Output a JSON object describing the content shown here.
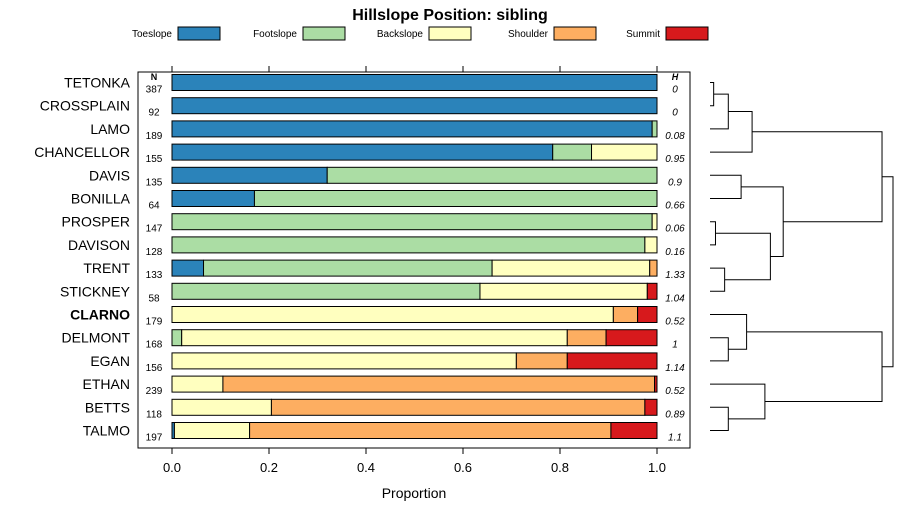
{
  "chart_data": {
    "type": "bar",
    "orientation": "horizontal",
    "stacked": true,
    "title": "Hillslope Position: sibling",
    "xlabel": "Proportion",
    "ylabel": "",
    "xlim": [
      0,
      1
    ],
    "xticks": [
      "0.0",
      "0.2",
      "0.4",
      "0.6",
      "0.8",
      "1.0"
    ],
    "n_header": "N",
    "h_header": "H",
    "highlight": "CLARNO",
    "legend": [
      {
        "name": "Toeslope",
        "color": "#2b83ba"
      },
      {
        "name": "Footslope",
        "color": "#abdda4"
      },
      {
        "name": "Backslope",
        "color": "#ffffbf"
      },
      {
        "name": "Shoulder",
        "color": "#fdae61"
      },
      {
        "name": "Summit",
        "color": "#d7191c"
      }
    ],
    "categories": [
      "TETONKA",
      "CROSSPLAIN",
      "LAMO",
      "CHANCELLOR",
      "DAVIS",
      "BONILLA",
      "PROSPER",
      "DAVISON",
      "TRENT",
      "STICKNEY",
      "CLARNO",
      "DELMONT",
      "EGAN",
      "ETHAN",
      "BETTS",
      "TALMO"
    ],
    "n": [
      "387",
      "92",
      "189",
      "155",
      "135",
      "64",
      "147",
      "128",
      "133",
      "58",
      "179",
      "168",
      "156",
      "239",
      "118",
      "197"
    ],
    "h": [
      "0",
      "0",
      "0.08",
      "0.95",
      "0.9",
      "0.66",
      "0.06",
      "0.16",
      "1.33",
      "1.04",
      "0.52",
      "1",
      "1.14",
      "0.52",
      "0.89",
      "1.1"
    ],
    "series": [
      {
        "name": "Toeslope",
        "values": [
          1.0,
          1.0,
          0.99,
          0.785,
          0.32,
          0.17,
          0.0,
          0.0,
          0.065,
          0.0,
          0.0,
          0.0,
          0.0,
          0.0,
          0.0,
          0.005
        ]
      },
      {
        "name": "Footslope",
        "values": [
          0.0,
          0.0,
          0.01,
          0.08,
          0.68,
          0.83,
          0.99,
          0.975,
          0.595,
          0.635,
          0.0,
          0.02,
          0.0,
          0.0,
          0.0,
          0.0
        ]
      },
      {
        "name": "Backslope",
        "values": [
          0.0,
          0.0,
          0.0,
          0.135,
          0.0,
          0.0,
          0.01,
          0.025,
          0.325,
          0.345,
          0.91,
          0.795,
          0.71,
          0.105,
          0.205,
          0.155
        ]
      },
      {
        "name": "Shoulder",
        "values": [
          0.0,
          0.0,
          0.0,
          0.0,
          0.0,
          0.0,
          0.0,
          0.0,
          0.015,
          0.0,
          0.05,
          0.08,
          0.105,
          0.89,
          0.77,
          0.745
        ]
      },
      {
        "name": "Summit",
        "values": [
          0.0,
          0.0,
          0.0,
          0.0,
          0.0,
          0.0,
          0.0,
          0.0,
          0.0,
          0.02,
          0.04,
          0.105,
          0.185,
          0.005,
          0.025,
          0.095
        ]
      }
    ],
    "dendrogram": {
      "leaves": [
        "TETONKA",
        "CROSSPLAIN",
        "LAMO",
        "CHANCELLOR",
        "DAVIS",
        "BONILLA",
        "PROSPER",
        "DAVISON",
        "TRENT",
        "STICKNEY",
        "CLARNO",
        "DELMONT",
        "EGAN",
        "ETHAN",
        "BETTS",
        "TALMO"
      ],
      "merges": [
        {
          "left": "L0",
          "right": "L1",
          "height": 0.02
        },
        {
          "left": "N0",
          "right": "L2",
          "height": 0.1
        },
        {
          "left": "N1",
          "right": "L3",
          "height": 0.23
        },
        {
          "left": "L4",
          "right": "L5",
          "height": 0.17
        },
        {
          "left": "L6",
          "right": "L7",
          "height": 0.03
        },
        {
          "left": "L8",
          "right": "L9",
          "height": 0.08
        },
        {
          "left": "N4",
          "right": "N5",
          "height": 0.33
        },
        {
          "left": "N3",
          "right": "N6",
          "height": 0.4
        },
        {
          "left": "L11",
          "right": "L12",
          "height": 0.1
        },
        {
          "left": "L10",
          "right": "N8",
          "height": 0.2
        },
        {
          "left": "L14",
          "right": "L15",
          "height": 0.1
        },
        {
          "left": "L13",
          "right": "N10",
          "height": 0.3
        },
        {
          "left": "N9",
          "right": "N11",
          "height": 0.94
        },
        {
          "left": "N2",
          "right": "N7",
          "height": 0.94
        },
        {
          "left": "N13",
          "right": "N12",
          "height": 1.0
        }
      ]
    }
  }
}
